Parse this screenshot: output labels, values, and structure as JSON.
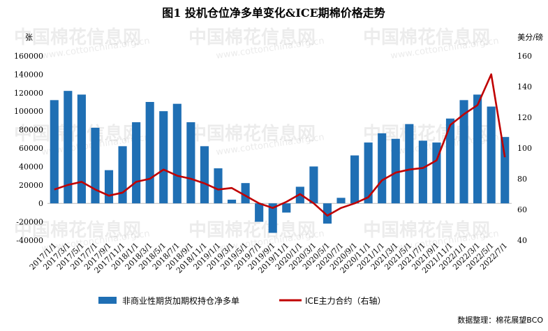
{
  "watermark": {
    "brand": "中国棉花信息网",
    "url": "www.cottonchina.org.cn"
  },
  "chart_data": {
    "type": "bar+line",
    "title": "图1  投机仓位净多单变化&ICE期棉价格走势",
    "left_unit": "张",
    "right_unit": "美分/磅",
    "left_axis": {
      "ticks": [
        "160000",
        "140000",
        "120000",
        "100000",
        "80000",
        "60000",
        "40000",
        "20000",
        "0",
        "-20000",
        "-40000"
      ],
      "ylim": [
        -40000,
        160000
      ]
    },
    "right_axis": {
      "ticks": [
        "160",
        "140",
        "120",
        "100",
        "80",
        "60",
        "40"
      ],
      "ylim": [
        40,
        160
      ]
    },
    "x_ticks": [
      "2017/1/1",
      "2017/3/1",
      "2017/5/1",
      "2017/7/1",
      "2017/9/1",
      "2017/11/1",
      "2018/1/1",
      "2018/3/1",
      "2018/5/1",
      "2018/7/1",
      "2018/9/1",
      "2018/11/1",
      "2019/1/1",
      "2019/3/1",
      "2019/5/1",
      "2019/7/1",
      "2019/9/1",
      "2019/11/1",
      "2020/1/1",
      "2020/3/1",
      "2020/5/1",
      "2020/7/1",
      "2020/9/1",
      "2020/11/1",
      "2021/1/1",
      "2021/3/1",
      "2021/5/1",
      "2021/7/1",
      "2021/9/1",
      "2021/11/1",
      "2022/1/1",
      "2022/3/1",
      "2022/5/1",
      "2022/7/1"
    ],
    "series": [
      {
        "name": "非商业性期货加期权持仓净多单",
        "kind": "bar",
        "axis": "left",
        "color": "#1f6fb4",
        "x": [
          "2017-01",
          "2017-03",
          "2017-05",
          "2017-07",
          "2017-09",
          "2017-11",
          "2018-01",
          "2018-03",
          "2018-05",
          "2018-07",
          "2018-09",
          "2018-11",
          "2019-01",
          "2019-03",
          "2019-05",
          "2019-07",
          "2019-09",
          "2019-11",
          "2020-01",
          "2020-03",
          "2020-05",
          "2020-07",
          "2020-09",
          "2020-11",
          "2021-01",
          "2021-03",
          "2021-05",
          "2021-07",
          "2021-09",
          "2021-11",
          "2022-01",
          "2022-03",
          "2022-05",
          "2022-07"
        ],
        "values": [
          112000,
          122000,
          118000,
          82000,
          36000,
          62000,
          88000,
          110000,
          100000,
          108000,
          88000,
          62000,
          38000,
          4000,
          22000,
          -20000,
          -32000,
          -10000,
          18000,
          40000,
          -22000,
          6000,
          52000,
          66000,
          76000,
          70000,
          86000,
          68000,
          66000,
          92000,
          112000,
          118000,
          105000,
          72000
        ]
      },
      {
        "name": "ICE主力合约（右轴）",
        "kind": "line",
        "axis": "right",
        "color": "#c00000",
        "x": [
          "2017-01",
          "2017-03",
          "2017-05",
          "2017-07",
          "2017-09",
          "2017-11",
          "2018-01",
          "2018-03",
          "2018-05",
          "2018-07",
          "2018-09",
          "2018-11",
          "2019-01",
          "2019-03",
          "2019-05",
          "2019-07",
          "2019-09",
          "2019-11",
          "2020-01",
          "2020-03",
          "2020-05",
          "2020-07",
          "2020-09",
          "2020-11",
          "2021-01",
          "2021-03",
          "2021-05",
          "2021-07",
          "2021-09",
          "2021-11",
          "2022-01",
          "2022-03",
          "2022-05",
          "2022-07"
        ],
        "values": [
          73,
          76,
          78,
          73,
          69,
          71,
          78,
          80,
          86,
          82,
          80,
          77,
          73,
          74,
          69,
          64,
          61,
          65,
          70,
          64,
          56,
          61,
          64,
          68,
          79,
          84,
          86,
          87,
          92,
          115,
          122,
          128,
          148,
          94
        ]
      }
    ]
  },
  "legend": {
    "bar_label": "非商业性期货加期权持仓净多单",
    "line_label": "ICE主力合约（右轴）"
  },
  "source": "数据整理：棉花展望BCO"
}
